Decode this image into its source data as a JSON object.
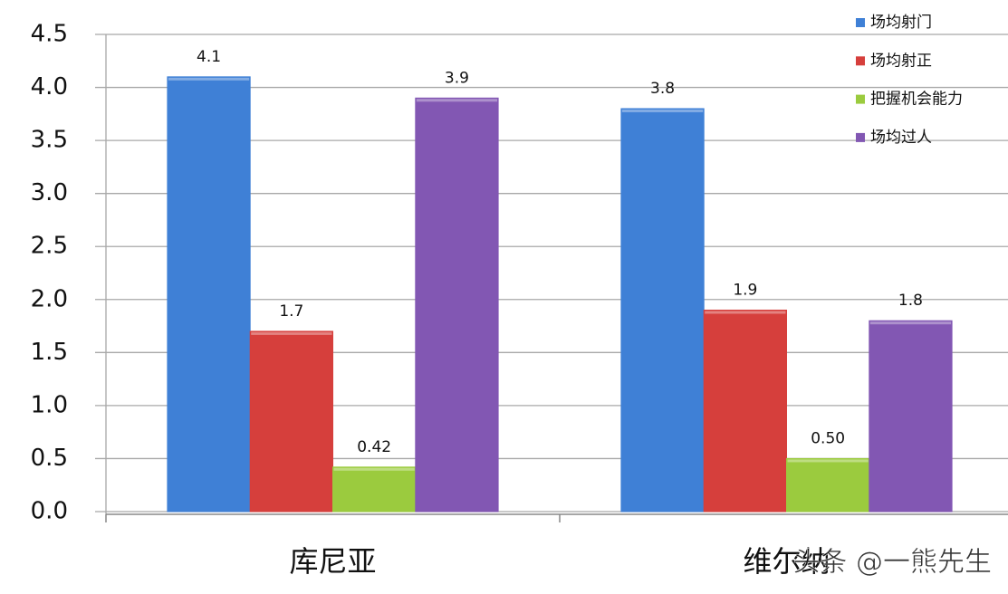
{
  "chart_data": {
    "type": "bar",
    "categories": [
      "库尼亚",
      "维尔纳"
    ],
    "watermark": "头条 @一熊先生",
    "series": [
      {
        "name": "场均射门",
        "color": "#3f80d6",
        "values": [
          4.1,
          3.8
        ]
      },
      {
        "name": "场均射正",
        "color": "#d63f3c",
        "values": [
          1.7,
          1.9
        ]
      },
      {
        "name": "把握机会能力",
        "color": "#9bcb3e",
        "values": [
          0.42,
          0.5
        ],
        "value_labels": [
          "0.42",
          "0.50"
        ]
      },
      {
        "name": "场均过人",
        "color": "#8257b3",
        "values": [
          3.9,
          1.8
        ]
      }
    ],
    "ylim": [
      0,
      4.5
    ],
    "yticks": [
      {
        "value": 0,
        "label": "0.0"
      },
      0.5,
      {
        "value": 1,
        "label": "1.0"
      },
      1.5,
      {
        "value": 2,
        "label": "2.0"
      },
      2.5,
      {
        "value": 3,
        "label": "3.0"
      },
      3.5,
      {
        "value": 4,
        "label": "4.0"
      },
      4.5
    ],
    "grid": true,
    "legend": "top-right"
  }
}
